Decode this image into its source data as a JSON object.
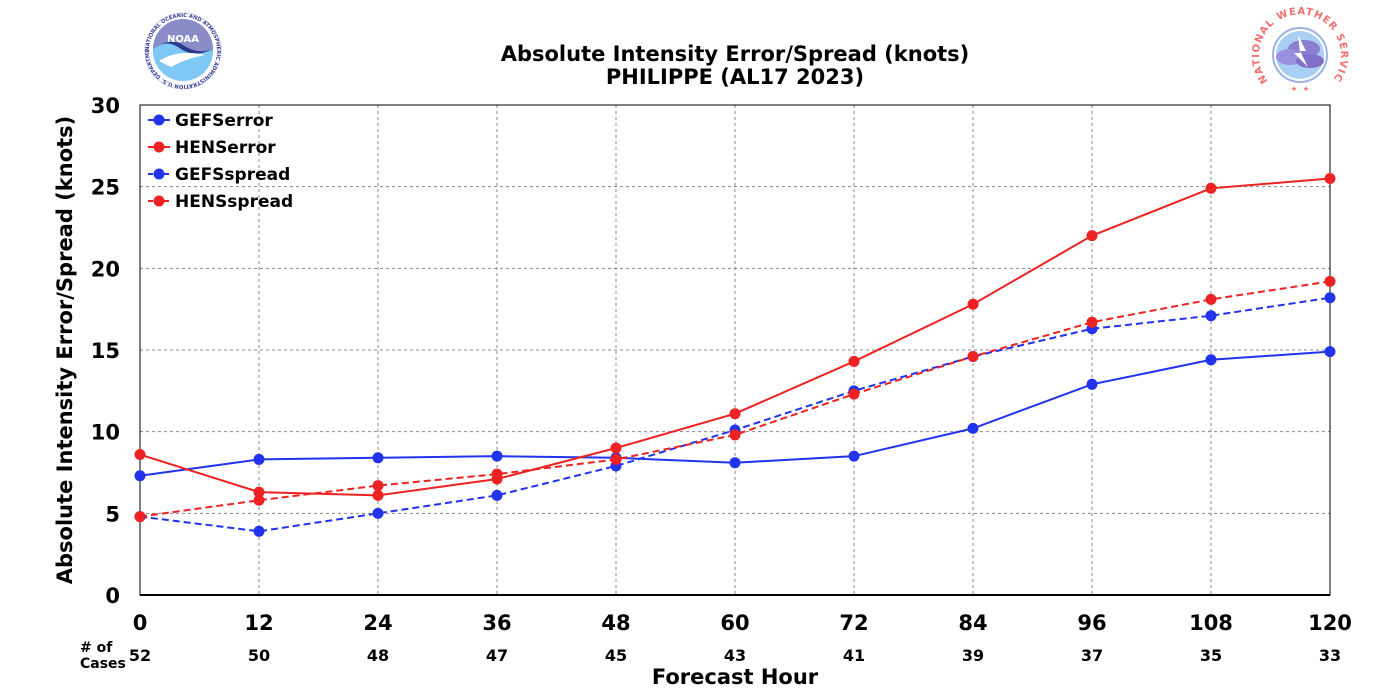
{
  "chart_data": {
    "type": "line",
    "title": "Absolute Intensity Error/Spread (knots)",
    "subtitle": "PHILIPPE (AL17 2023)",
    "xlabel": "Forecast Hour",
    "ylabel": "Absolute Intensity Error/Spread (knots)",
    "x": [
      0,
      12,
      24,
      36,
      48,
      60,
      72,
      84,
      96,
      108,
      120
    ],
    "xlim": [
      0,
      120
    ],
    "ylim": [
      0,
      30
    ],
    "yticks": [
      0,
      5,
      10,
      15,
      20,
      25,
      30
    ],
    "grid": true,
    "legend_position": "top-left",
    "cases_label_line1": "# of",
    "cases_label_line2": "Cases",
    "cases": [
      52,
      50,
      48,
      47,
      45,
      43,
      41,
      39,
      37,
      35,
      33
    ],
    "series": [
      {
        "name": "GEFSerror",
        "color": "#2233ee",
        "dash": "solid",
        "values": [
          7.3,
          8.3,
          8.4,
          8.5,
          8.4,
          8.1,
          8.5,
          10.2,
          12.9,
          14.4,
          14.9
        ]
      },
      {
        "name": "HENSerror",
        "color": "#ee2222",
        "dash": "solid",
        "values": [
          8.6,
          6.3,
          6.1,
          7.1,
          9.0,
          11.1,
          14.3,
          17.8,
          22.0,
          24.9,
          25.5
        ]
      },
      {
        "name": "GEFSspread",
        "color": "#2233ee",
        "dash": "dashed",
        "values": [
          4.8,
          3.9,
          5.0,
          6.1,
          7.9,
          10.1,
          12.5,
          14.6,
          16.3,
          17.1,
          18.2
        ]
      },
      {
        "name": "HENSspread",
        "color": "#ee2222",
        "dash": "dashed",
        "values": [
          4.8,
          5.8,
          6.7,
          7.4,
          8.3,
          9.8,
          12.3,
          14.6,
          16.7,
          18.1,
          19.2
        ]
      }
    ]
  },
  "logos": {
    "left": {
      "icon": "noaa-logo-icon",
      "text": "NOAA",
      "ring_text": "NATIONAL OCEANIC AND ATMOSPHERIC ADMINISTRATION U.S. DEPARTMENT OF COMMERCE"
    },
    "right": {
      "icon": "nws-logo-icon",
      "text": "NATIONAL WEATHER SERVICE"
    }
  }
}
